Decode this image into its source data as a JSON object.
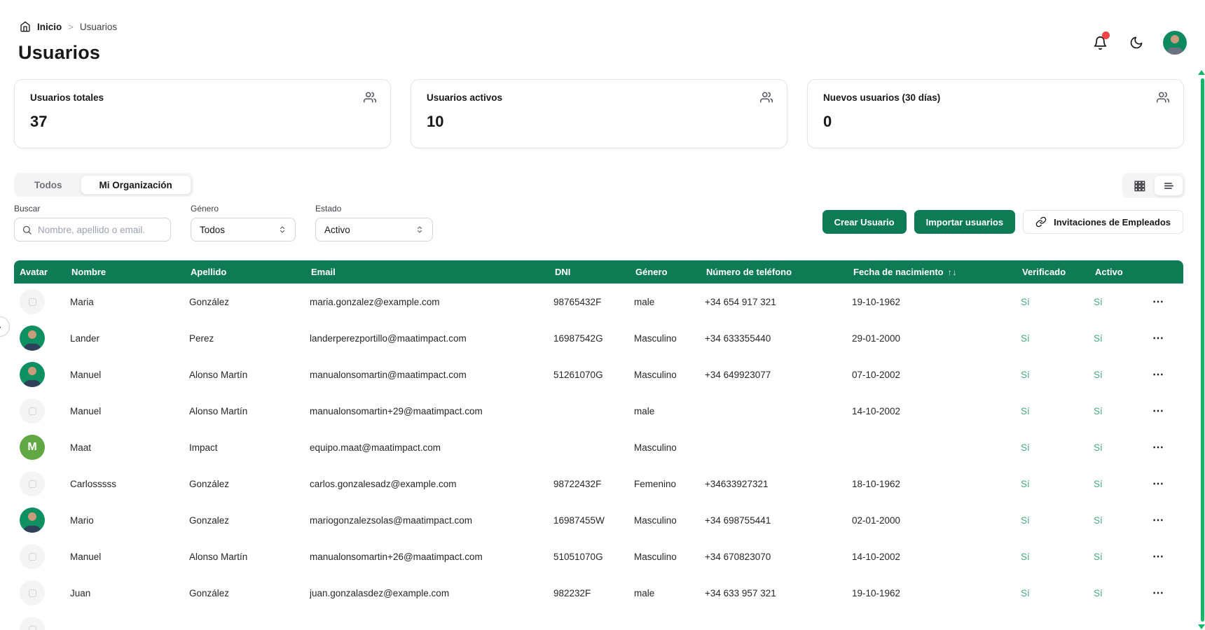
{
  "theme": {
    "accent": "#0e7b55",
    "scrollbar": "#12b76a",
    "yes_green": "#46a97c"
  },
  "icons": {
    "ellipsis": "⋯",
    "sort_asc": "↑",
    "sort_desc": "↓",
    "breadcrumb_separator": ">",
    "edge_chevron": "›"
  },
  "breadcrumb": {
    "home_label": "Inicio",
    "current": "Usuarios"
  },
  "header": {
    "title": "Usuarios"
  },
  "stats": [
    {
      "label": "Usuarios totales",
      "value": "37"
    },
    {
      "label": "Usuarios activos",
      "value": "10"
    },
    {
      "label": "Nuevos usuarios (30 días)",
      "value": "0"
    }
  ],
  "tabs": [
    {
      "label": "Todos",
      "active": false
    },
    {
      "label": "Mi Organización",
      "active": true
    }
  ],
  "filters": {
    "search_label": "Buscar",
    "search_placeholder": "Nombre, apellido o email.",
    "gender_label": "Género",
    "gender_value": "Todos",
    "status_label": "Estado",
    "status_value": "Activo"
  },
  "actions": {
    "create": "Crear Usuario",
    "import": "Importar usuarios",
    "invitations": "Invitaciones de Empleados"
  },
  "table": {
    "columns": [
      "Avatar",
      "Nombre",
      "Apellido",
      "Email",
      "DNI",
      "Género",
      "Número de teléfono",
      "Fecha de nacimiento",
      "Verificado",
      "Activo"
    ],
    "rows": [
      {
        "avatar": {
          "type": "placeholder"
        },
        "name": "Maria",
        "surname": "González",
        "email": "maria.gonzalez@example.com",
        "dni": "98765432F",
        "gender": "male",
        "phone": "+34 654 917 321",
        "birthdate": "19-10-1962",
        "verified": "Sí",
        "active": "Sí"
      },
      {
        "avatar": {
          "type": "photo"
        },
        "name": "Lander",
        "surname": "Perez",
        "email": "landerperezportillo@maatimpact.com",
        "dni": "16987542G",
        "gender": "Masculino",
        "phone": "+34 633355440",
        "birthdate": "29-01-2000",
        "verified": "Sí",
        "active": "Sí"
      },
      {
        "avatar": {
          "type": "photo"
        },
        "name": "Manuel",
        "surname": "Alonso Martín",
        "email": "manualonsomartin@maatimpact.com",
        "dni": "51261070G",
        "gender": "Masculino",
        "phone": "+34 649923077",
        "birthdate": "07-10-2002",
        "verified": "Sí",
        "active": "Sí"
      },
      {
        "avatar": {
          "type": "placeholder"
        },
        "name": "Manuel",
        "surname": "Alonso Martín",
        "email": "manualonsomartin+29@maatimpact.com",
        "dni": "",
        "gender": "male",
        "phone": "",
        "birthdate": "14-10-2002",
        "verified": "Sí",
        "active": "Sí"
      },
      {
        "avatar": {
          "type": "initial",
          "initial": "M"
        },
        "name": "Maat",
        "surname": "Impact",
        "email": "equipo.maat@maatimpact.com",
        "dni": "",
        "gender": "Masculino",
        "phone": "",
        "birthdate": "",
        "verified": "Sí",
        "active": "Sí"
      },
      {
        "avatar": {
          "type": "placeholder"
        },
        "name": "Carlosssss",
        "surname": "González",
        "email": "carlos.gonzalesadz@example.com",
        "dni": "98722432F",
        "gender": "Femenino",
        "phone": "+34633927321",
        "birthdate": "18-10-1962",
        "verified": "Sí",
        "active": "Sí"
      },
      {
        "avatar": {
          "type": "photo"
        },
        "name": "Mario",
        "surname": "Gonzalez",
        "email": "mariogonzalezsolas@maatimpact.com",
        "dni": "16987455W",
        "gender": "Masculino",
        "phone": "+34 698755441",
        "birthdate": "02-01-2000",
        "verified": "Sí",
        "active": "Sí"
      },
      {
        "avatar": {
          "type": "placeholder"
        },
        "name": "Manuel",
        "surname": "Alonso Martín",
        "email": "manualonsomartin+26@maatimpact.com",
        "dni": "51051070G",
        "gender": "Masculino",
        "phone": "+34 670823070",
        "birthdate": "14-10-2002",
        "verified": "Sí",
        "active": "Sí"
      },
      {
        "avatar": {
          "type": "placeholder"
        },
        "name": "Juan",
        "surname": "González",
        "email": "juan.gonzalasdez@example.com",
        "dni": "982232F",
        "gender": "male",
        "phone": "+34 633 957 321",
        "birthdate": "19-10-1962",
        "verified": "Sí",
        "active": "Sí"
      }
    ]
  }
}
